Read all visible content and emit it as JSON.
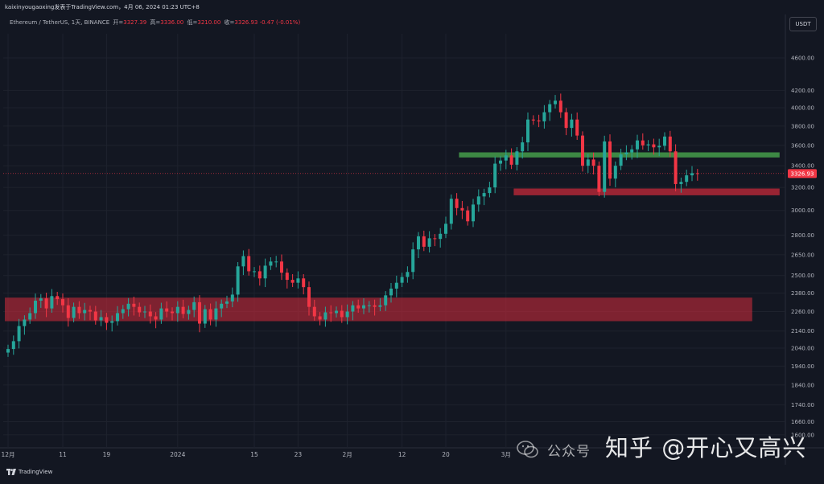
{
  "header": {
    "credit": "kaixinyougaoxing发表于TradingView.com，4月 06, 2024 01:23 UTC+8",
    "symbol": "Ethereum / TetherUS, 1天, BINANCE",
    "open_label": "开=",
    "open_value": "3327.39",
    "high_label": "高=",
    "high_value": "3336.00",
    "low_label": "低=",
    "low_value": "3210.00",
    "close_label": "收=",
    "close_value": "3326.93",
    "change": "-0.47 (-0.01%)",
    "unit_button": "USDT"
  },
  "footer": {
    "brand": "TradingView"
  },
  "watermark": {
    "account": "公众号",
    "text": "知乎 @开心又高兴"
  },
  "colors": {
    "background": "#131722",
    "up": "#26a69a",
    "down": "#f23645",
    "support_zone": "#c62a3a",
    "resistance_zone": "#4caf50"
  },
  "chart_data": {
    "type": "candlestick",
    "scale": "log",
    "y_ticks": [
      1600,
      1660,
      1740,
      1840,
      1940,
      2040,
      2140,
      2260,
      2380,
      2500,
      2650,
      2800,
      3000,
      3200,
      3400,
      3600,
      3800,
      4000,
      4200,
      4600
    ],
    "y_tick_labels": [
      "1600.00",
      "1660.00",
      "1740.00",
      "1840.00",
      "1940.00",
      "2040.00",
      "2140.00",
      "2260.00",
      "2380.00",
      "2500.00",
      "2650.00",
      "2800.00",
      "3000.00",
      "3200.00",
      "3400.00",
      "3600.00",
      "3800.00",
      "4000.00",
      "4200.00",
      "4600.00"
    ],
    "x_tick_labels": [
      "12月",
      "11",
      "19",
      "2024",
      "15",
      "23",
      "2月",
      "12",
      "20",
      "3月"
    ],
    "x_tick_days": [
      0,
      10,
      18,
      31,
      45,
      53,
      62,
      72,
      80,
      91
    ],
    "last_price": "3326.93",
    "last_price_value": 3326.93,
    "zones": [
      {
        "kind": "support",
        "low": 2200,
        "high": 2350,
        "start_day": 0,
        "end_day": 136
      },
      {
        "kind": "support",
        "low": 3130,
        "high": 3190,
        "start_day": 93,
        "end_day": 141
      },
      {
        "kind": "resistance",
        "low": 3480,
        "high": 3530,
        "start_day": 83,
        "end_day": 141
      }
    ],
    "closes": [
      2035,
      2080,
      2170,
      2210,
      2250,
      2330,
      2345,
      2280,
      2360,
      2340,
      2300,
      2220,
      2290,
      2250,
      2270,
      2260,
      2205,
      2225,
      2190,
      2200,
      2250,
      2275,
      2310,
      2290,
      2255,
      2260,
      2230,
      2210,
      2280,
      2260,
      2250,
      2290,
      2245,
      2270,
      2320,
      2185,
      2275,
      2210,
      2280,
      2310,
      2325,
      2370,
      2565,
      2640,
      2530,
      2530,
      2480,
      2570,
      2600,
      2600,
      2520,
      2470,
      2450,
      2480,
      2420,
      2290,
      2230,
      2210,
      2255,
      2250,
      2265,
      2225,
      2260,
      2300,
      2280,
      2300,
      2300,
      2290,
      2300,
      2365,
      2410,
      2450,
      2490,
      2525,
      2690,
      2790,
      2710,
      2775,
      2770,
      2810,
      2890,
      3100,
      3020,
      3000,
      2910,
      3050,
      3120,
      3150,
      3200,
      3420,
      3450,
      3500,
      3410,
      3540,
      3630,
      3870,
      3860,
      3850,
      3950,
      4040,
      4080,
      3950,
      3780,
      3870,
      3700,
      3400,
      3460,
      3400,
      3160,
      3640,
      3280,
      3400,
      3510,
      3530,
      3560,
      3650,
      3600,
      3610,
      3580,
      3595,
      3690,
      3540,
      3230,
      3250,
      3310,
      3330,
      3326.93
    ],
    "opens_note": "open of each candle equals the previous candle's close",
    "timeframe": "1天"
  }
}
